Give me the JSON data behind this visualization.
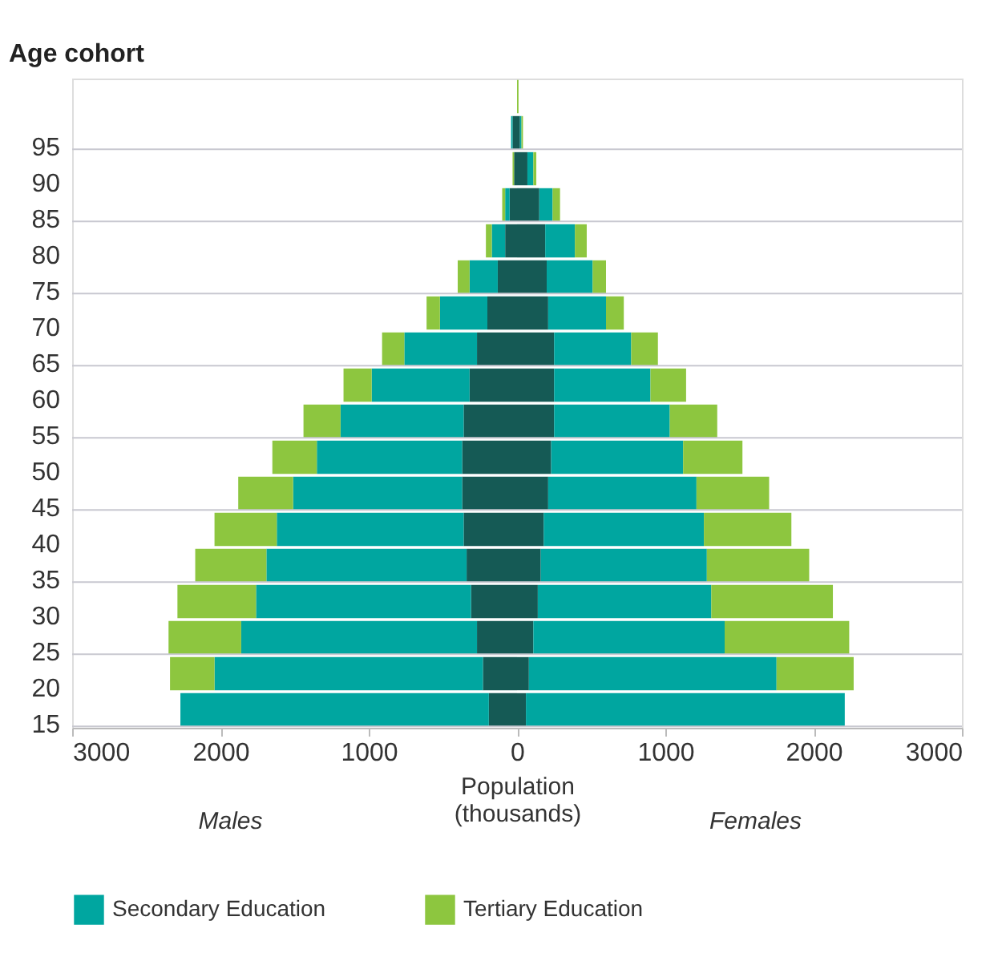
{
  "chart_data": {
    "type": "bar",
    "orientation": "horizontal",
    "stacked": true,
    "ylabel": "Age cohort",
    "xlabel": "Population\n(thousands)",
    "annotations": [
      "Males",
      "Females"
    ],
    "categories": [
      null,
      "95",
      "90",
      "85",
      "80",
      "75",
      "70",
      "65",
      "60",
      "55",
      "50",
      "45",
      "40",
      "35",
      "30",
      "25",
      "20",
      "15"
    ],
    "series": [
      {
        "color": "#155a55",
        "values": [
          0,
          -30,
          -20,
          -50,
          -80,
          -130,
          -200,
          -270,
          -320,
          -360,
          -370,
          -370,
          -360,
          -340,
          -310,
          -270,
          -230,
          -190
        ]
      },
      {
        "color": "#00a6a0",
        "values": [
          0,
          -10,
          0,
          -30,
          -90,
          -190,
          -320,
          -490,
          -660,
          -830,
          -980,
          -1140,
          -1260,
          -1350,
          -1450,
          -1590,
          -1810,
          -2080
        ]
      },
      {
        "color": "#8dc63f",
        "values": [
          0,
          0,
          -10,
          -20,
          -40,
          -80,
          -90,
          -150,
          -190,
          -250,
          -300,
          -370,
          -420,
          -480,
          -530,
          -490,
          -300,
          0
        ]
      },
      {
        "color": "#155a55",
        "values": [
          0,
          20,
          70,
          150,
          190,
          200,
          210,
          250,
          250,
          250,
          230,
          210,
          180,
          160,
          140,
          110,
          80,
          60
        ]
      },
      {
        "name": "Secondary Education",
        "color": "#00a6a0",
        "values": [
          0,
          10,
          40,
          90,
          200,
          310,
          390,
          520,
          650,
          780,
          890,
          1000,
          1080,
          1120,
          1170,
          1290,
          1670,
          2150
        ]
      },
      {
        "name": "Tertiary Education",
        "color": "#8dc63f",
        "values": [
          10,
          10,
          20,
          50,
          80,
          90,
          120,
          180,
          240,
          320,
          400,
          490,
          590,
          690,
          820,
          840,
          520,
          0
        ]
      }
    ],
    "xlim": [
      -3000,
      3000
    ],
    "xticks": [
      {
        "value": -3000,
        "label": "3000"
      },
      {
        "value": -2000,
        "label": "2000"
      },
      {
        "value": -1000,
        "label": "1000"
      },
      0,
      1000,
      2000,
      3000
    ],
    "grid": "y",
    "legend": "bottom"
  }
}
